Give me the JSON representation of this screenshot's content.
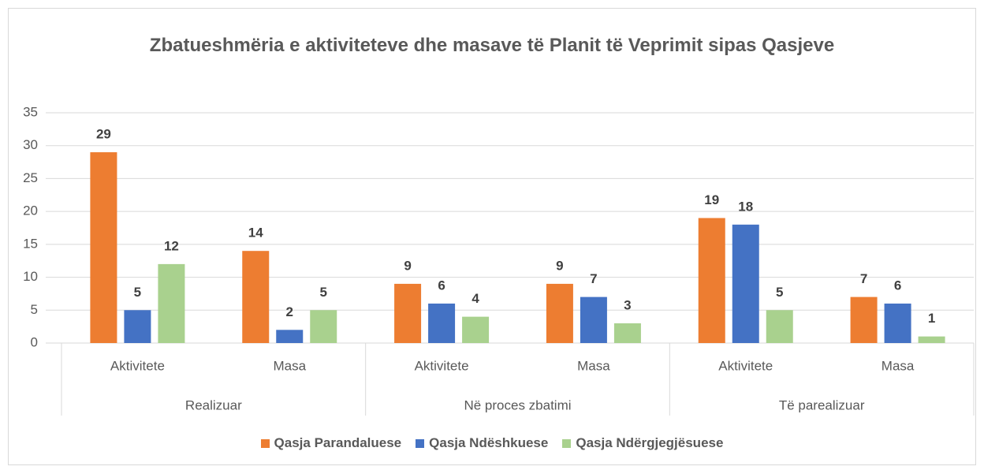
{
  "chart_data": {
    "type": "bar",
    "title": "Zbatueshmëria e aktiviteteve dhe masave të Planit të Veprimit sipas Qasjeve",
    "categories": [
      "Aktivitete",
      "Masa",
      "Aktivitete",
      "Masa",
      "Aktivitete",
      "Masa"
    ],
    "groups": [
      "Realizuar",
      "Në proces zbatimi",
      "Të parealizuar"
    ],
    "series": [
      {
        "name": "Qasja Parandaluese",
        "color": "#ed7d31",
        "values": [
          29,
          14,
          9,
          9,
          19,
          7
        ]
      },
      {
        "name": "Qasja Ndëshkuese",
        "color": "#4472c4",
        "values": [
          5,
          2,
          6,
          7,
          18,
          6
        ]
      },
      {
        "name": "Qasja Ndërgjegjësuese",
        "color": "#a9d18e",
        "values": [
          12,
          5,
          4,
          3,
          5,
          1
        ]
      }
    ],
    "ylim": [
      0,
      35
    ],
    "yticks": [
      0,
      5,
      10,
      15,
      20,
      25,
      30,
      35
    ],
    "grid": true,
    "legend": "bottom"
  }
}
